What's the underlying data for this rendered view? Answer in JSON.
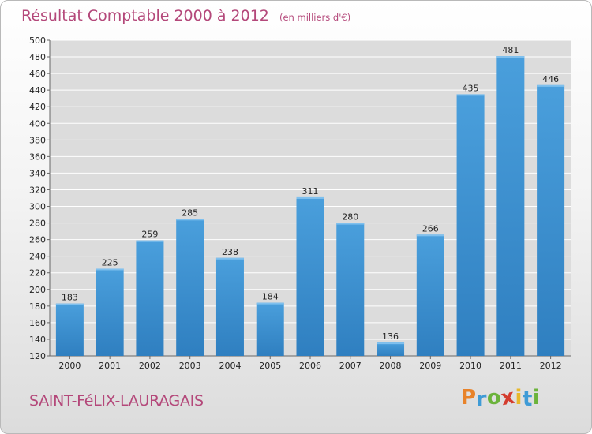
{
  "chart_data": {
    "type": "bar",
    "title": "Résultat Comptable 2000 à 2012",
    "subtitle": "(en milliers d'€)",
    "categories": [
      "2000",
      "2001",
      "2002",
      "2003",
      "2004",
      "2005",
      "2006",
      "2007",
      "2008",
      "2009",
      "2010",
      "2011",
      "2012"
    ],
    "values": [
      183,
      225,
      259,
      285,
      238,
      184,
      311,
      280,
      136,
      266,
      435,
      481,
      446
    ],
    "value_labels": [
      "183",
      "225",
      "259",
      "285",
      "238",
      "184",
      "311",
      "280",
      "136",
      "266",
      "435",
      "481",
      "446"
    ],
    "ylim": [
      120,
      500
    ],
    "yticks": [
      120,
      140,
      160,
      180,
      200,
      220,
      240,
      260,
      280,
      300,
      320,
      340,
      360,
      380,
      400,
      420,
      440,
      460,
      480,
      500
    ],
    "ytick_labels": [
      "120",
      "140",
      "160",
      "180",
      "200",
      "220",
      "240",
      "260",
      "280",
      "300",
      "320",
      "340",
      "360",
      "380",
      "400",
      "420",
      "440",
      "460",
      "480",
      "500"
    ],
    "grid": true,
    "xlabel": "",
    "ylabel": ""
  },
  "footer": {
    "commune": "SAINT-FéLIX-LAURAGAIS",
    "logo_letters": [
      "P",
      "r",
      "o",
      "x",
      "i",
      "t",
      "i"
    ],
    "logo_colors": [
      "#e8832a",
      "#3f9bd6",
      "#6bb33b",
      "#d43c2e",
      "#e8b82a",
      "#3f9bd6",
      "#6bb33b"
    ]
  },
  "colors": {
    "title": "#b4487a",
    "bar": "#4a9fdc",
    "bar_dark": "#2f7fc0",
    "grid": "#ffffff",
    "plot_bg": "#dcdcdc"
  }
}
